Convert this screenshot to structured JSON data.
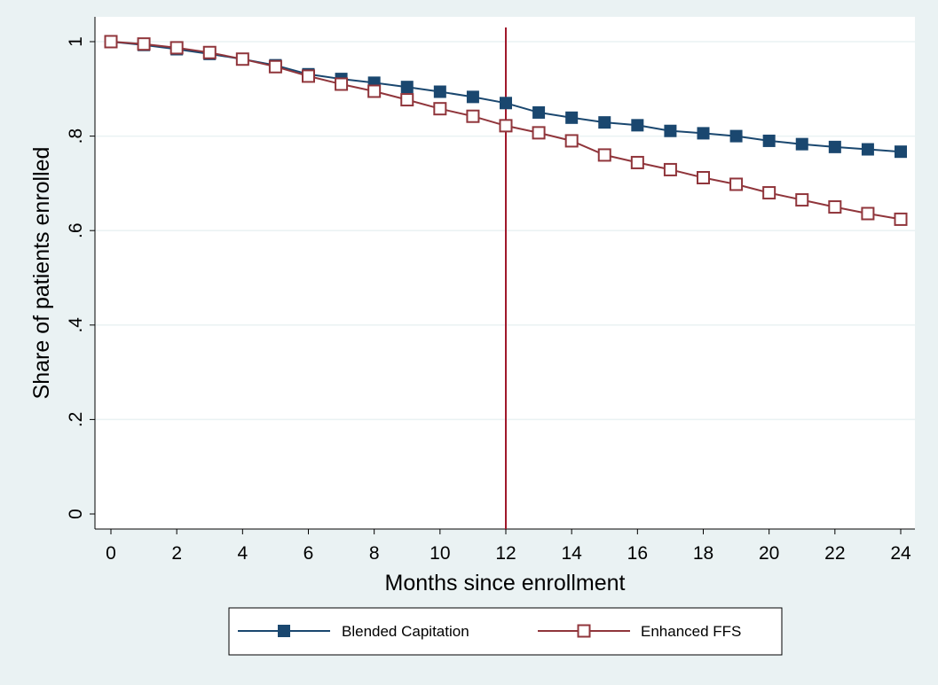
{
  "chart_data": {
    "type": "line",
    "title": "",
    "xlabel": "Months since enrollment",
    "ylabel": "Share of patients enrolled",
    "xlim": [
      0,
      24
    ],
    "ylim": [
      0,
      1
    ],
    "x": [
      0,
      1,
      2,
      3,
      4,
      5,
      6,
      7,
      8,
      9,
      10,
      11,
      12,
      13,
      14,
      15,
      16,
      17,
      18,
      19,
      20,
      21,
      22,
      23,
      24
    ],
    "x_ticks": [
      0,
      2,
      4,
      6,
      8,
      10,
      12,
      14,
      16,
      18,
      20,
      22,
      24
    ],
    "x_tick_labels": [
      "0",
      "2",
      "4",
      "6",
      "8",
      "10",
      "12",
      "14",
      "16",
      "18",
      "20",
      "22",
      "24"
    ],
    "y_ticks": [
      0,
      0.2,
      0.4,
      0.6,
      0.8,
      1
    ],
    "y_tick_labels": [
      "0",
      ".2",
      ".4",
      ".6",
      ".8",
      "1"
    ],
    "grid": "horizontal",
    "vline_x": 12,
    "vline_color": "#a0182b",
    "legend_position": "bottom",
    "series": [
      {
        "name": "Blended Capitation",
        "color": "#1a476f",
        "marker": "filled-square",
        "values": [
          1.0,
          0.993,
          0.984,
          0.974,
          0.963,
          0.95,
          0.931,
          0.921,
          0.913,
          0.904,
          0.894,
          0.883,
          0.87,
          0.85,
          0.839,
          0.829,
          0.823,
          0.811,
          0.806,
          0.8,
          0.79,
          0.783,
          0.777,
          0.772,
          0.767
        ]
      },
      {
        "name": "Enhanced FFS",
        "color": "#90353b",
        "marker": "hollow-square",
        "values": [
          1.0,
          0.995,
          0.987,
          0.977,
          0.963,
          0.947,
          0.927,
          0.91,
          0.895,
          0.877,
          0.858,
          0.842,
          0.822,
          0.807,
          0.79,
          0.76,
          0.744,
          0.729,
          0.712,
          0.698,
          0.68,
          0.665,
          0.65,
          0.636,
          0.624
        ]
      }
    ]
  }
}
